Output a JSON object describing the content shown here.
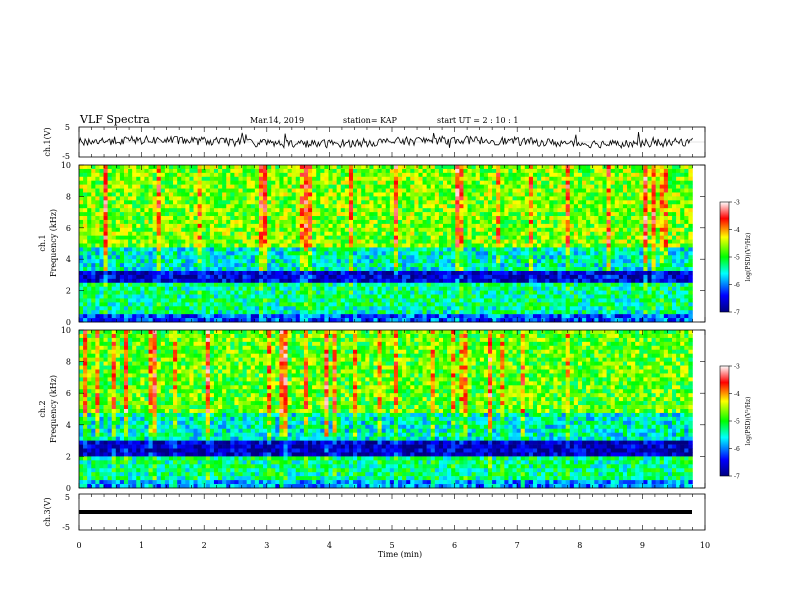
{
  "header": {
    "title": "VLF Spectra",
    "date": "Mar.14, 2019",
    "station": "station= KAP",
    "start": "start  UT =   2 : 10 : 1"
  },
  "chart_data": [
    {
      "type": "line",
      "name": "ch1-waveform",
      "ylabel": "ch.1(V)",
      "ylim": [
        -5,
        5
      ],
      "yticks": [
        "5",
        "-5"
      ],
      "xlim": [
        0,
        10
      ],
      "series": [
        {
          "x_range": [
            0,
            9.8
          ],
          "description_values": "noisy signal approximately between -3 and 4 V"
        }
      ]
    },
    {
      "type": "heatmap",
      "name": "ch1-spectrogram",
      "ylabel_top": "ch.1",
      "ylabel": "Frequency (kHz)",
      "ylim": [
        0,
        10
      ],
      "yticks": [
        "0",
        "2",
        "4",
        "6",
        "8",
        "10"
      ],
      "xlim": [
        0,
        10
      ],
      "data_x_range": [
        0,
        9.8
      ],
      "colorbar": {
        "label": "log(PSD)(V²/Hz)",
        "ticks": [
          "-3",
          "-4",
          "-5",
          "-6",
          "-7"
        ],
        "range": [
          -7,
          -3
        ]
      },
      "bands": [
        {
          "f": [
            0,
            0.5
          ],
          "level": -6.2
        },
        {
          "f": [
            0.5,
            1.0
          ],
          "level": -5.4
        },
        {
          "f": [
            1.0,
            2.6
          ],
          "level": -5.3
        },
        {
          "f": [
            2.6,
            3.2
          ],
          "level": -6.6
        },
        {
          "f": [
            3.2,
            4.8
          ],
          "level": -5.5
        },
        {
          "f": [
            4.8,
            10
          ],
          "level": -4.7
        }
      ]
    },
    {
      "type": "heatmap",
      "name": "ch2-spectrogram",
      "ylabel_top": "ch.2",
      "ylabel": "Frequency (kHz)",
      "ylim": [
        0,
        10
      ],
      "yticks": [
        "0",
        "2",
        "4",
        "6",
        "8",
        "10"
      ],
      "xlim": [
        0,
        10
      ],
      "data_x_range": [
        0,
        9.8
      ],
      "colorbar": {
        "label": "log(PSD)(V²/Hz)",
        "ticks": [
          "-3",
          "-4",
          "-5",
          "-6",
          "-7"
        ],
        "range": [
          -7,
          -3
        ]
      },
      "bands": [
        {
          "f": [
            0,
            0.6
          ],
          "level": -5.9
        },
        {
          "f": [
            0.6,
            2.0
          ],
          "level": -5.3
        },
        {
          "f": [
            2.0,
            3.1
          ],
          "level": -6.7
        },
        {
          "f": [
            3.1,
            4.8
          ],
          "level": -5.5
        },
        {
          "f": [
            4.8,
            10
          ],
          "level": -4.8
        }
      ]
    },
    {
      "type": "line",
      "name": "ch3-waveform",
      "ylabel": "ch.3(V)",
      "ylim": [
        -5,
        5
      ],
      "yticks": [
        "5",
        "-5"
      ],
      "xlim": [
        0,
        10
      ],
      "series": [
        {
          "x_range": [
            0,
            9.8
          ],
          "y_level": -1.2
        }
      ]
    }
  ],
  "xaxis": {
    "label": "Time (min)",
    "ticks": [
      "0",
      "1",
      "2",
      "3",
      "4",
      "5",
      "6",
      "7",
      "8",
      "9",
      "10"
    ]
  }
}
